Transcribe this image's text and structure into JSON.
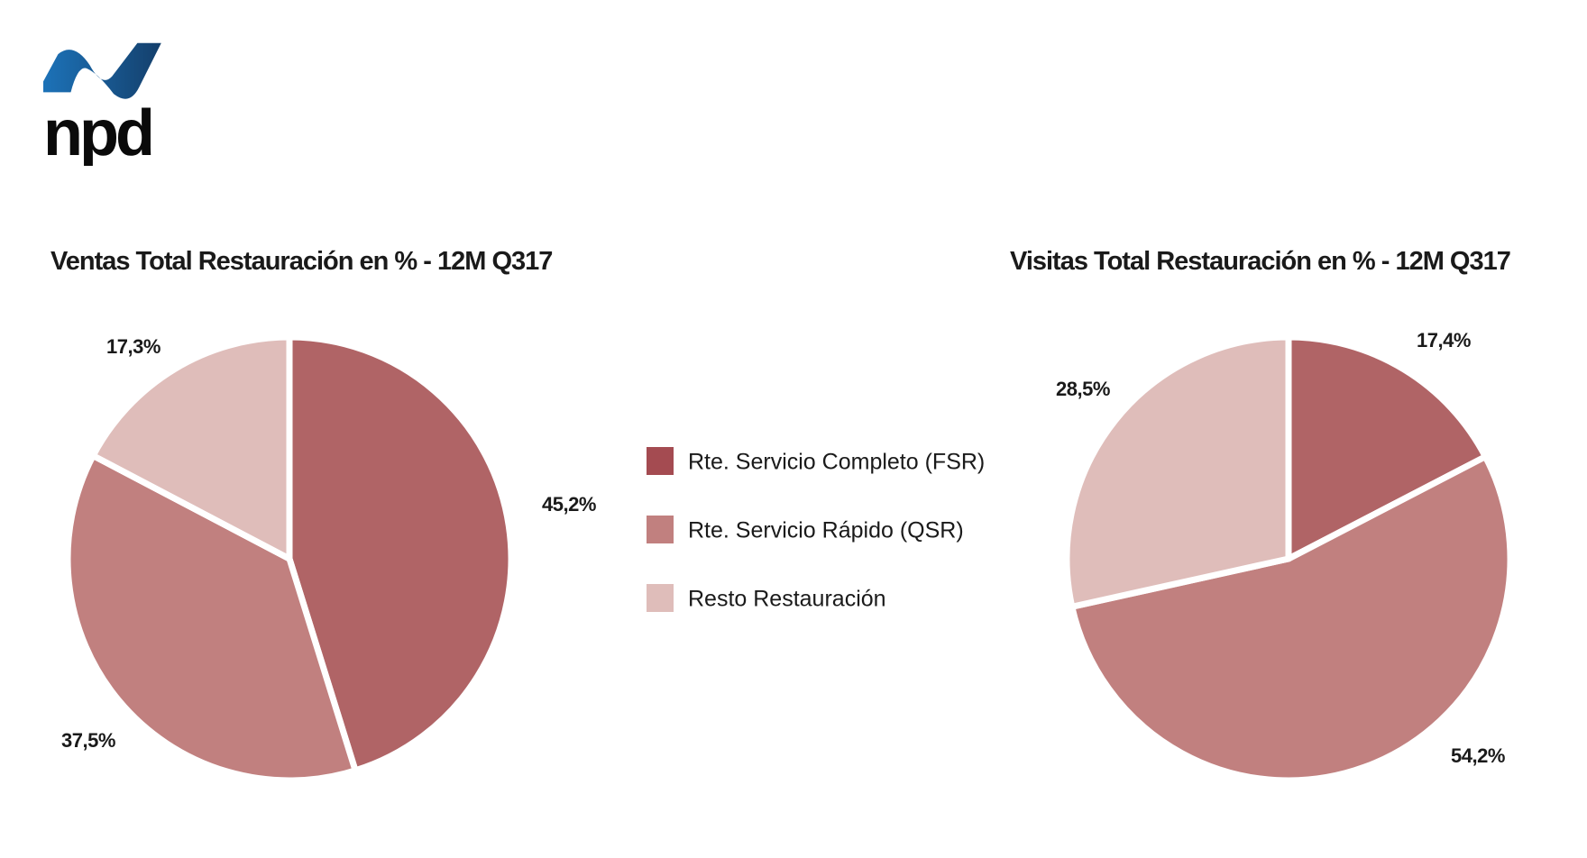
{
  "logo": {
    "text": "npd"
  },
  "colors": {
    "fsr": "#b06466",
    "qsr": "#c1807f",
    "resto": "#dfbdba",
    "legend_fsr": "#a44b51",
    "legend_qsr": "#c1807f",
    "legend_resto": "#dfbdba"
  },
  "legend": [
    {
      "label": "Rte. Servicio Completo (FSR)"
    },
    {
      "label": "Rte. Servicio Rápido (QSR)"
    },
    {
      "label": "Resto Restauración"
    }
  ],
  "chart_data": [
    {
      "type": "pie",
      "title": "Ventas Total Restauración en % - 12M Q317",
      "categories": [
        "Rte. Servicio Completo (FSR)",
        "Rte. Servicio Rápido (QSR)",
        "Resto Restauración"
      ],
      "values": [
        45.2,
        37.5,
        17.3
      ],
      "labels": [
        "45,2%",
        "37,5%",
        "17,3%"
      ],
      "legend_position": "center"
    },
    {
      "type": "pie",
      "title": "Visitas Total Restauración en % - 12M Q317",
      "categories": [
        "Rte. Servicio Completo (FSR)",
        "Rte. Servicio Rápido (QSR)",
        "Resto Restauración"
      ],
      "values": [
        17.4,
        54.2,
        28.5
      ],
      "labels": [
        "17,4%",
        "54,2%",
        "28,5%"
      ],
      "legend_position": "center"
    }
  ]
}
